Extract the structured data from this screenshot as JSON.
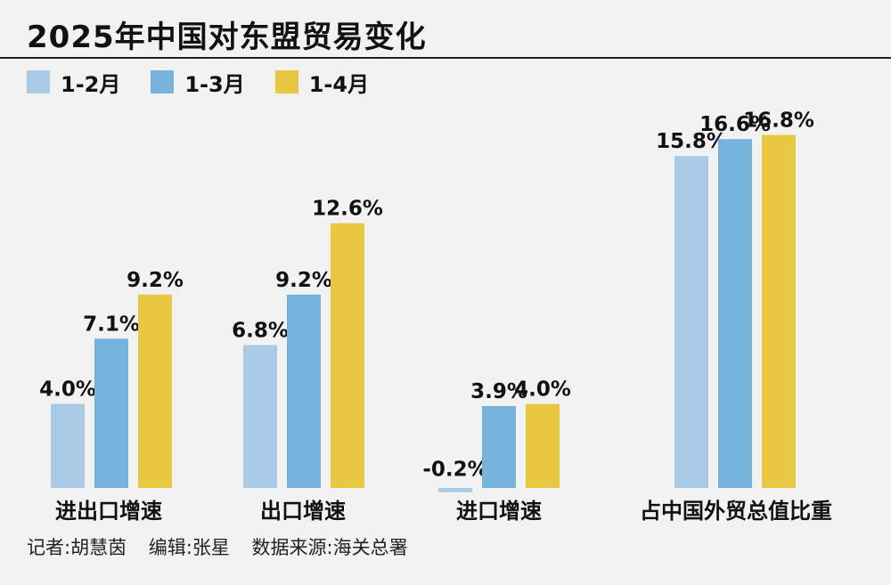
{
  "title": "2025年中国对东盟贸易变化",
  "legend": [
    {
      "label": "1-2月",
      "color": "#a9cbe5"
    },
    {
      "label": "1-3月",
      "color": "#76b3dc"
    },
    {
      "label": "1-4月",
      "color": "#e8c841"
    }
  ],
  "chart_data": {
    "type": "bar",
    "title": "2025年中国对东盟贸易变化",
    "categories": [
      "进出口增速",
      "出口增速",
      "进口增速",
      "占中国外贸总值比重"
    ],
    "series": [
      {
        "name": "1-2月",
        "values": [
          4.0,
          6.8,
          -0.2,
          15.8
        ],
        "labels": [
          "4.0%",
          "6.8%",
          "-0.2%",
          "15.8%"
        ],
        "color": "#a9cbe5"
      },
      {
        "name": "1-3月",
        "values": [
          7.1,
          9.2,
          3.9,
          16.6
        ],
        "labels": [
          "7.1%",
          "9.2%",
          "3.9%",
          "16.6%"
        ],
        "color": "#76b3dc"
      },
      {
        "name": "1-4月",
        "values": [
          9.2,
          12.6,
          4.0,
          16.8
        ],
        "labels": [
          "9.2%",
          "12.6%",
          "4.0%",
          "16.8%"
        ],
        "color": "#e8c841"
      }
    ],
    "unit": "%",
    "grid": false,
    "legend_position": "top-left"
  },
  "credits": {
    "reporter": "记者:胡慧茵",
    "editor": "编辑:张星",
    "source": "数据来源:海关总署"
  }
}
